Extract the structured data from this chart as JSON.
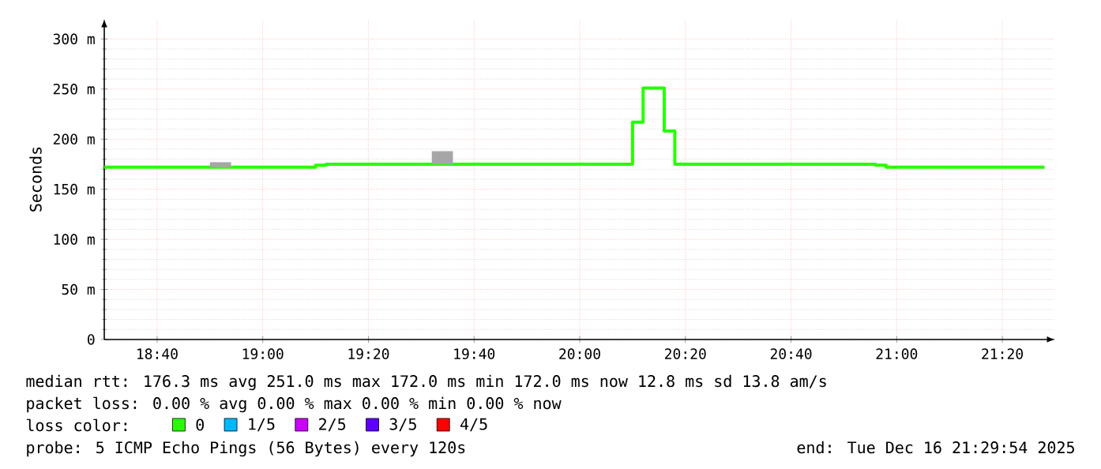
{
  "chart_data": {
    "type": "step",
    "ylabel": "Seconds",
    "xlim": [
      18.5,
      21.5
    ],
    "ylim": [
      0,
      320
    ],
    "xticks": [
      {
        "value": 18.6667,
        "label": "18:40"
      },
      {
        "value": 19,
        "label": "19:00"
      },
      {
        "value": 19.3333,
        "label": "19:20"
      },
      {
        "value": 19.6667,
        "label": "19:40"
      },
      {
        "value": 20,
        "label": "20:00"
      },
      {
        "value": 20.3333,
        "label": "20:20"
      },
      {
        "value": 20.6667,
        "label": "20:40"
      },
      {
        "value": 21,
        "label": "21:00"
      },
      {
        "value": 21.3333,
        "label": "21:20"
      }
    ],
    "yticks": [
      {
        "value": 0,
        "label": "0"
      },
      {
        "value": 50,
        "label": "50 m"
      },
      {
        "value": 100,
        "label": "100 m"
      },
      {
        "value": 150,
        "label": "150 m"
      },
      {
        "value": 200,
        "label": "200 m"
      },
      {
        "value": 250,
        "label": "250 m"
      },
      {
        "value": 300,
        "label": "300 m"
      }
    ],
    "grid": true,
    "legend": "bottom",
    "legend_title": "loss color:",
    "x": [
      18.5,
      18.8333,
      18.9,
      19.1667,
      19.2,
      19.5333,
      19.6,
      20.1667,
      20.2,
      20.2667,
      20.3,
      20.9333,
      20.9667,
      21.4667
    ],
    "series": [
      {
        "name": "0",
        "color": "#26ff00",
        "values": [
          172,
          172,
          172,
          174,
          175,
          175,
          175,
          217,
          251,
          208,
          175,
          174,
          172,
          172
        ],
        "lower": [
          null,
          172,
          172,
          null,
          null,
          175,
          175,
          null,
          null,
          null,
          null,
          null,
          null,
          null
        ],
        "upper": [
          null,
          177,
          177,
          null,
          null,
          188,
          188,
          null,
          null,
          null,
          null,
          null,
          null,
          null
        ]
      },
      {
        "name": "1/5",
        "color": "#00b8ff",
        "values": [
          null,
          null,
          null,
          null,
          null,
          null,
          null,
          null,
          null,
          null,
          null,
          null,
          null,
          null
        ]
      },
      {
        "name": "2/5",
        "color": "#cc00ff",
        "values": [
          null,
          null,
          null,
          null,
          null,
          null,
          null,
          null,
          null,
          null,
          null,
          null,
          null,
          null
        ]
      },
      {
        "name": "3/5",
        "color": "#5e00ff",
        "values": [
          null,
          null,
          null,
          null,
          null,
          null,
          null,
          null,
          null,
          null,
          null,
          null,
          null,
          null
        ]
      },
      {
        "name": "4/5",
        "color": "#ff0000",
        "values": [
          null,
          null,
          null,
          null,
          null,
          null,
          null,
          null,
          null,
          null,
          null,
          null,
          null,
          null
        ]
      }
    ],
    "annotations": [
      "median rtt:  176.3 ms avg  251.0 ms max  172.0 ms min  172.0 ms now  12.8 ms sd  13.8   am/s",
      "packet loss: 0.00 % avg  0.00 % max  0.00 % min  0.00 % now",
      "probe:       5 ICMP Echo Pings (56 Bytes) every 120s",
      "end: Tue Dec 16 21:29:54 2025"
    ]
  }
}
